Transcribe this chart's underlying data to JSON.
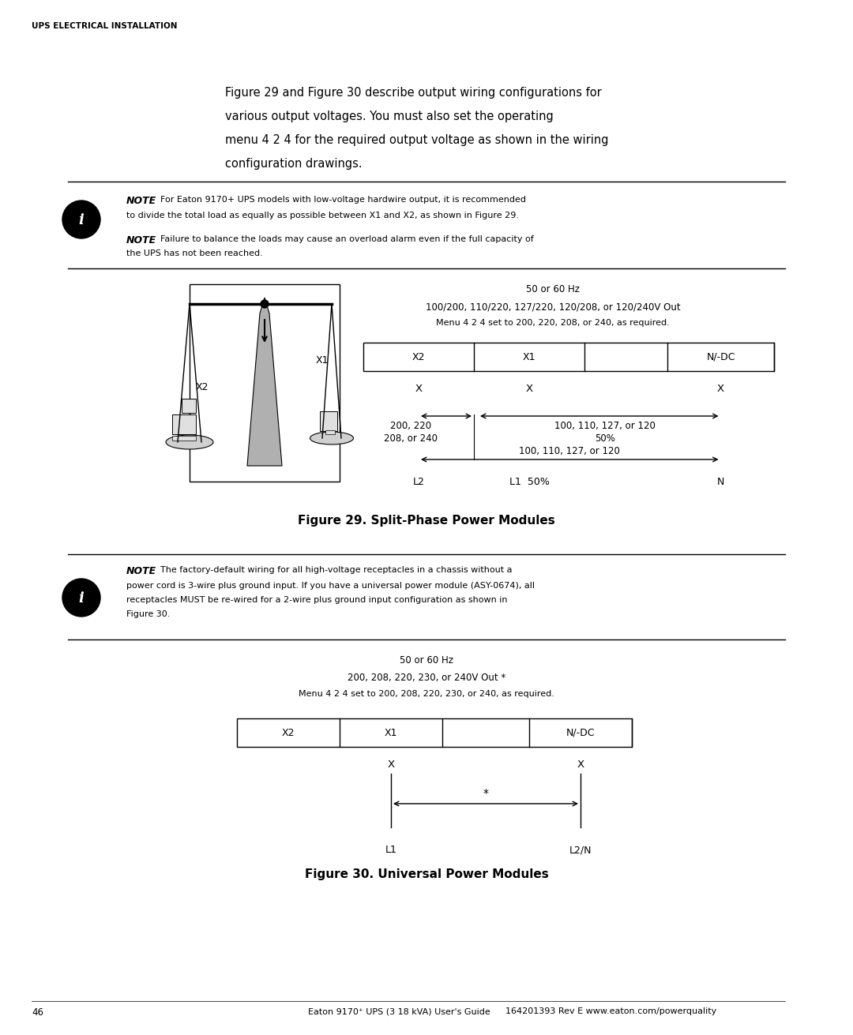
{
  "bg_color": "#ffffff",
  "page_width": 10.8,
  "page_height": 13.11,
  "header_text": "UPS ELECTRICAL INSTALLATION",
  "intro_text": "Figure 29 and Figure 30 describe output wiring configurations for\nvarious output voltages. You must also set the operating\nmenu 4 2 4 for the required output voltage as shown in the wiring\nconfiguration drawings.",
  "note1_bold": "NOTE",
  "note1_line1": "  For Eaton 9170+ UPS models with low-voltage hardwire output, it is recommended",
  "note1_line2": "to divide the total load as equally as possible between X1 and X2, as shown in Figure 29.",
  "note2_bold": "NOTE",
  "note2_line1": "  Failure to balance the loads may cause an overload alarm even if the full capacity of",
  "note2_line2": "the UPS has not been reached.",
  "fig29_header1": "50 or 60 Hz",
  "fig29_header2": "100/200, 110/220, 127/220, 120/208, or 120/240V Out",
  "fig29_header3": "Menu 4 2 4 set to 200, 220, 208, or 240, as required.",
  "fig29_cols": [
    "X2",
    "X1",
    "",
    "N/-DC"
  ],
  "fig29_caption": "Figure 29. Split-Phase Power Modules",
  "note3_bold": "NOTE",
  "note3_line1": "  The factory-default wiring for all high-voltage receptacles in a chassis without a",
  "note3_line2": "power cord is 3-wire plus ground input. If you have a universal power module (ASY-0674), all",
  "note3_line3": "receptacles MUST be re-wired for a 2-wire plus ground input configuration as shown in",
  "note3_line4": "Figure 30.",
  "fig30_header1": "50 or 60 Hz",
  "fig30_header2": "200, 208, 220, 230, or 240V Out *",
  "fig30_header3": "Menu 4 2 4 set to 200, 208, 220, 230, or 240, as required.",
  "fig30_cols": [
    "X2",
    "X1",
    "",
    "N/-DC"
  ],
  "fig30_caption": "Figure 30. Universal Power Modules",
  "footer_page": "46",
  "footer_center": "Eaton 9170¹ UPS (3 18 kVA) User's Guide",
  "footer_right": "164201393 Rev E www.eaton.com/powerquality"
}
